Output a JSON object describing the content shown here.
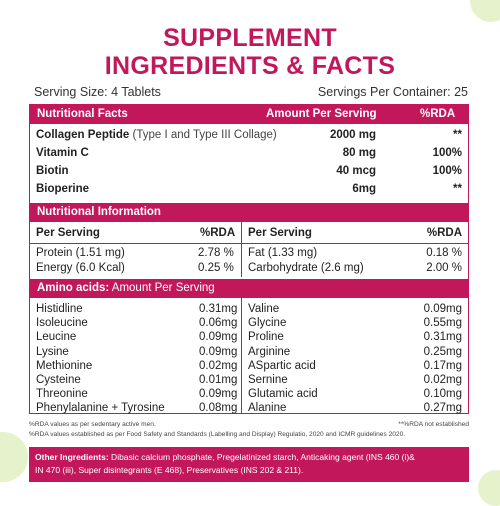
{
  "title": {
    "line1": "SUPPLEMENT",
    "line2": "INGREDIENTS & FACTS"
  },
  "serving": {
    "size": "Serving Size: 4 Tablets",
    "per_container": "Servings Per Container: 25"
  },
  "facts": {
    "headers": [
      "Nutritional Facts",
      "Amount Per Serving",
      "%RDA"
    ],
    "rows": [
      {
        "name": "Collagen Peptide",
        "detail": "(Type I and Type III Collage)",
        "amount": "2000 mg",
        "rda": "**"
      },
      {
        "name": "Vitamin C",
        "detail": "",
        "amount": "80 mg",
        "rda": "100%"
      },
      {
        "name": "Biotin",
        "detail": "",
        "amount": "40 mcg",
        "rda": "100%"
      },
      {
        "name": "Bioperine",
        "detail": "",
        "amount": "6mg",
        "rda": "**"
      }
    ]
  },
  "nutrition": {
    "header": "Nutritional Information",
    "subheaders": [
      "Per Serving",
      "%RDA",
      "Per Serving",
      "%RDA"
    ],
    "left": [
      {
        "name": "Protein",
        "detail": "(1.51 mg)",
        "rda": "2.78 %"
      },
      {
        "name": "Energy",
        "detail": "(6.0 Kcal)",
        "rda": "0.25 %"
      }
    ],
    "right": [
      {
        "name": "Fat",
        "detail": "(1.33 mg)",
        "rda": "0.18 %"
      },
      {
        "name": "Carbohydrate",
        "detail": "(2.6 mg)",
        "rda": "2.00 %"
      }
    ]
  },
  "amino": {
    "header_bold": "Amino acids:",
    "header_rest": " Amount Per Serving",
    "left": [
      {
        "name": "Histidline",
        "value": "0.31mg"
      },
      {
        "name": "Isoleucine",
        "value": "0.06mg"
      },
      {
        "name": "Leucine",
        "value": "0.09mg"
      },
      {
        "name": "Lysine",
        "value": "0.09mg"
      },
      {
        "name": "Methionine",
        "value": "0.02mg"
      },
      {
        "name": "Cysteine",
        "value": "0.01mg"
      },
      {
        "name": "Threonine",
        "value": "0.09mg"
      },
      {
        "name": "Phenylalanine + Tyrosine",
        "value": "0.08mg"
      }
    ],
    "right": [
      {
        "name": "Valine",
        "value": "0.09mg"
      },
      {
        "name": "Glycine",
        "value": "0.55mg"
      },
      {
        "name": "Proline",
        "value": "0.31mg"
      },
      {
        "name": "Arginine",
        "value": "0.25mg"
      },
      {
        "name": "ASpartic acid",
        "value": "0.17mg"
      },
      {
        "name": "Sernine",
        "value": "0.02mg"
      },
      {
        "name": "Glutamic acid",
        "value": "0.10mg"
      },
      {
        "name": "Alanine",
        "value": "0.27mg"
      }
    ]
  },
  "notes": {
    "line1_left": "%RDA values as per sedentary active men.",
    "line1_right": "**%RDA not established",
    "line2": "%RDA values established as per Food Safety and Standards (Labelling and Display) Regulatio, 2020 and ICMR guidelines 2020."
  },
  "other": {
    "label": "Other Ingredients:",
    "line1": " Dibasic calcium phosphate, Pregelatinized starch, Anticaking agent (INS 460 (i)&",
    "line2": "IN 470 (iii), Super disintegrants (E 468), Preservatives (INS 202 & 211)."
  },
  "colors": {
    "accent": "#c2185b",
    "leaf": "#cfe8a0"
  }
}
